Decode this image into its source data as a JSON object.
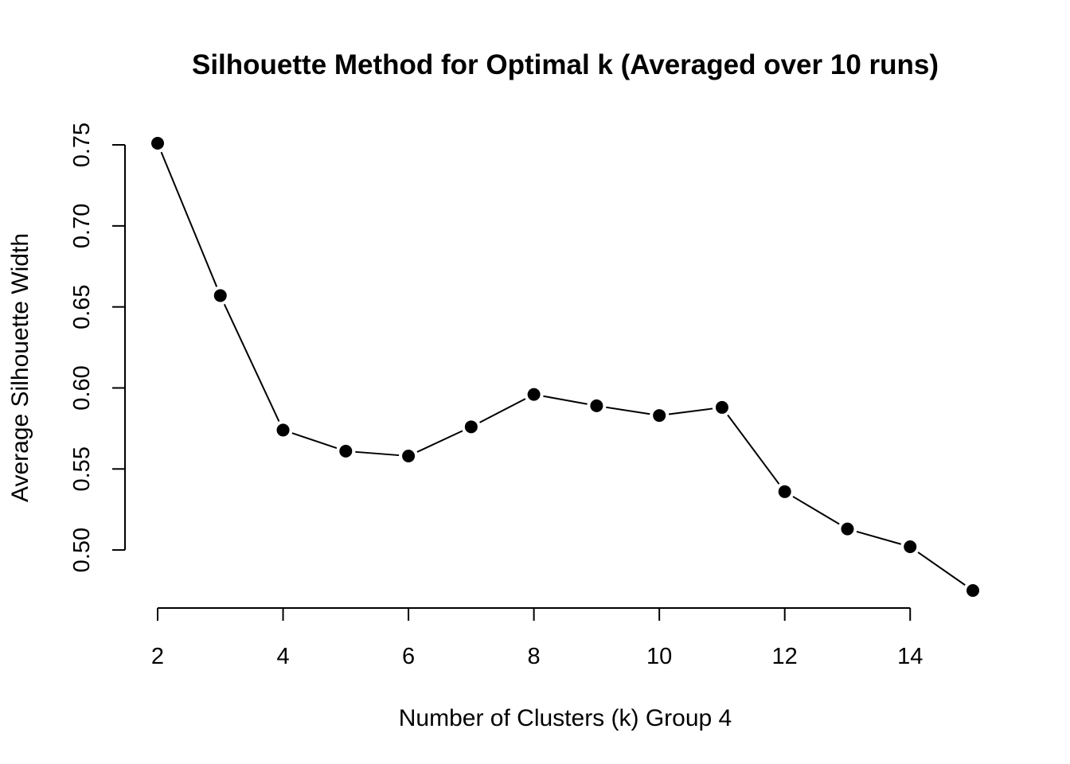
{
  "chart_data": {
    "type": "line",
    "title": "Silhouette Method for Optimal k (Averaged over 10 runs)",
    "xlabel": "Number of Clusters (k) Group 4",
    "ylabel": "Average Silhouette Width",
    "x": [
      2,
      3,
      4,
      5,
      6,
      7,
      8,
      9,
      10,
      11,
      12,
      13,
      14,
      15
    ],
    "values": [
      0.751,
      0.657,
      0.574,
      0.561,
      0.558,
      0.576,
      0.596,
      0.589,
      0.583,
      0.588,
      0.536,
      0.513,
      0.502,
      0.475
    ],
    "xlim": [
      2,
      15
    ],
    "ylim": [
      0.475,
      0.751
    ],
    "xticks": [
      2,
      4,
      6,
      8,
      10,
      12,
      14
    ],
    "xtick_labels": [
      "2",
      "4",
      "6",
      "8",
      "10",
      "12",
      "14"
    ],
    "yticks": [
      0.5,
      0.55,
      0.6,
      0.65,
      0.7,
      0.75
    ],
    "ytick_labels": [
      "0.50",
      "0.55",
      "0.60",
      "0.65",
      "0.70",
      "0.75"
    ],
    "grid": false,
    "line_color": "#000000",
    "marker_color": "#000000",
    "background": "#ffffff"
  }
}
